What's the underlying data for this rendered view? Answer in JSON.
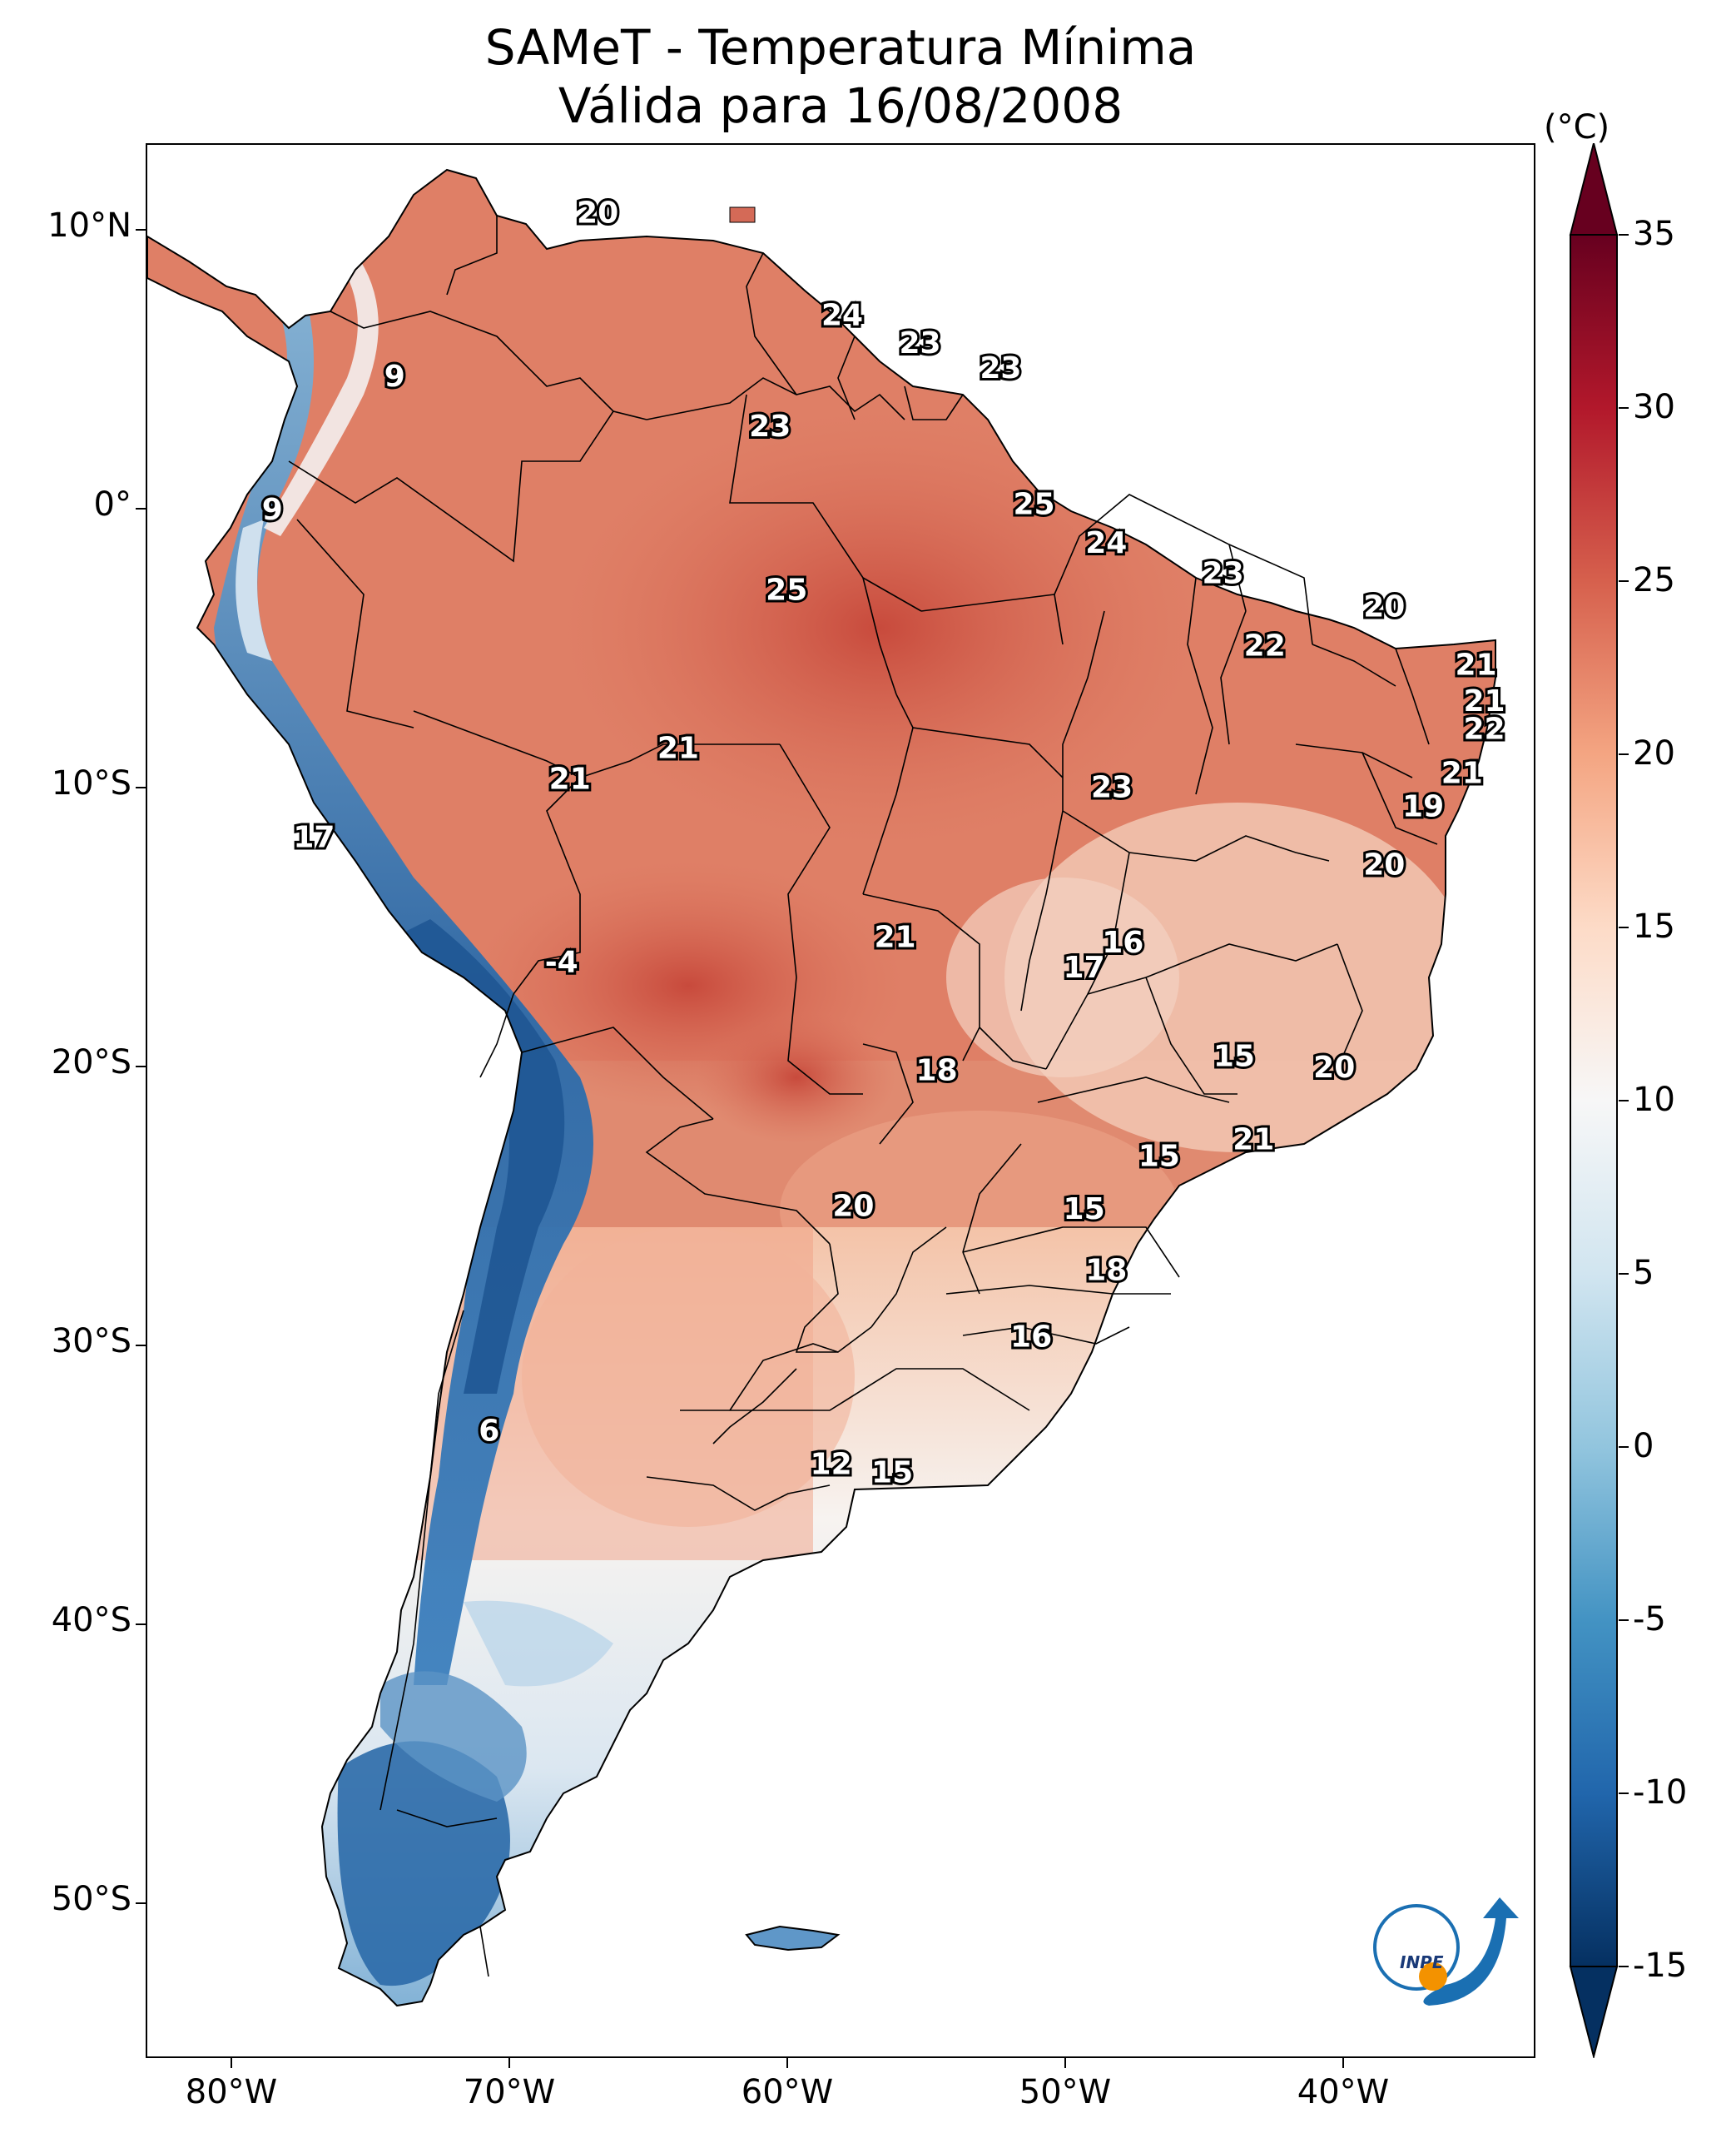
{
  "title": {
    "line1": "SAMeT - Temperatura Mínima",
    "line2": "Válida para 16/08/2008"
  },
  "colorbar": {
    "unit": "(°C)",
    "min": -15,
    "max": 35,
    "ticks": [
      "35",
      "30",
      "25",
      "20",
      "15",
      "10",
      "5",
      "0",
      "-5",
      "-10",
      "-15"
    ],
    "extend": "both",
    "colormap": "RdBu_r",
    "colors": [
      "#053061",
      "#2166ac",
      "#4393c3",
      "#92c5de",
      "#d1e5f0",
      "#f7f7f7",
      "#fddbc7",
      "#f4a582",
      "#d6604d",
      "#b2182b",
      "#67001f"
    ]
  },
  "axes": {
    "lat_labels": [
      "10°N",
      "0°",
      "10°S",
      "20°S",
      "30°S",
      "40°S",
      "50°S"
    ],
    "lon_labels": [
      "80°W",
      "70°W",
      "60°W",
      "50°W",
      "40°W"
    ],
    "lon_range": [
      -83,
      -33
    ],
    "lat_range": [
      -56,
      13
    ]
  },
  "logo": {
    "text": "INPE"
  },
  "stations": [
    {
      "v": "20",
      "lon": -66.8,
      "lat": 10.5
    },
    {
      "v": "24",
      "lon": -58.0,
      "lat": 6.8
    },
    {
      "v": "23",
      "lon": -55.2,
      "lat": 5.8
    },
    {
      "v": "23",
      "lon": -52.3,
      "lat": 4.9
    },
    {
      "v": "9",
      "lon": -74.1,
      "lat": 4.6
    },
    {
      "v": "23",
      "lon": -60.6,
      "lat": 2.8
    },
    {
      "v": "9",
      "lon": -78.5,
      "lat": -0.2
    },
    {
      "v": "25",
      "lon": -51.1,
      "lat": 0.0
    },
    {
      "v": "24",
      "lon": -48.5,
      "lat": -1.4
    },
    {
      "v": "23",
      "lon": -44.3,
      "lat": -2.5
    },
    {
      "v": "25",
      "lon": -60.0,
      "lat": -3.1
    },
    {
      "v": "20",
      "lon": -38.5,
      "lat": -3.7
    },
    {
      "v": "22",
      "lon": -42.8,
      "lat": -5.1
    },
    {
      "v": "21",
      "lon": -35.2,
      "lat": -5.8
    },
    {
      "v": "21",
      "lon": -34.9,
      "lat": -7.1
    },
    {
      "v": "22",
      "lon": -34.9,
      "lat": -8.1
    },
    {
      "v": "21",
      "lon": -63.9,
      "lat": -8.8
    },
    {
      "v": "21",
      "lon": -67.8,
      "lat": -9.9
    },
    {
      "v": "23",
      "lon": -48.3,
      "lat": -10.2
    },
    {
      "v": "21",
      "lon": -35.7,
      "lat": -9.7
    },
    {
      "v": "19",
      "lon": -37.1,
      "lat": -10.9
    },
    {
      "v": "17",
      "lon": -77.0,
      "lat": -12.0
    },
    {
      "v": "20",
      "lon": -38.5,
      "lat": -13.0
    },
    {
      "v": "21",
      "lon": -56.1,
      "lat": -15.6
    },
    {
      "v": "16",
      "lon": -47.9,
      "lat": -15.8
    },
    {
      "v": "17",
      "lon": -49.3,
      "lat": -16.7
    },
    {
      "v": "-4",
      "lon": -68.1,
      "lat": -16.5
    },
    {
      "v": "15",
      "lon": -43.9,
      "lat": -19.9
    },
    {
      "v": "18",
      "lon": -54.6,
      "lat": -20.4
    },
    {
      "v": "20",
      "lon": -40.3,
      "lat": -20.3
    },
    {
      "v": "21",
      "lon": -43.2,
      "lat": -22.9
    },
    {
      "v": "15",
      "lon": -46.6,
      "lat": -23.5
    },
    {
      "v": "20",
      "lon": -57.6,
      "lat": -25.3
    },
    {
      "v": "15",
      "lon": -49.3,
      "lat": -25.4
    },
    {
      "v": "18",
      "lon": -48.5,
      "lat": -27.6
    },
    {
      "v": "16",
      "lon": -51.2,
      "lat": -30.0
    },
    {
      "v": "6",
      "lon": -70.7,
      "lat": -33.4
    },
    {
      "v": "12",
      "lon": -58.4,
      "lat": -34.6
    },
    {
      "v": "15",
      "lon": -56.2,
      "lat": -34.9
    }
  ]
}
